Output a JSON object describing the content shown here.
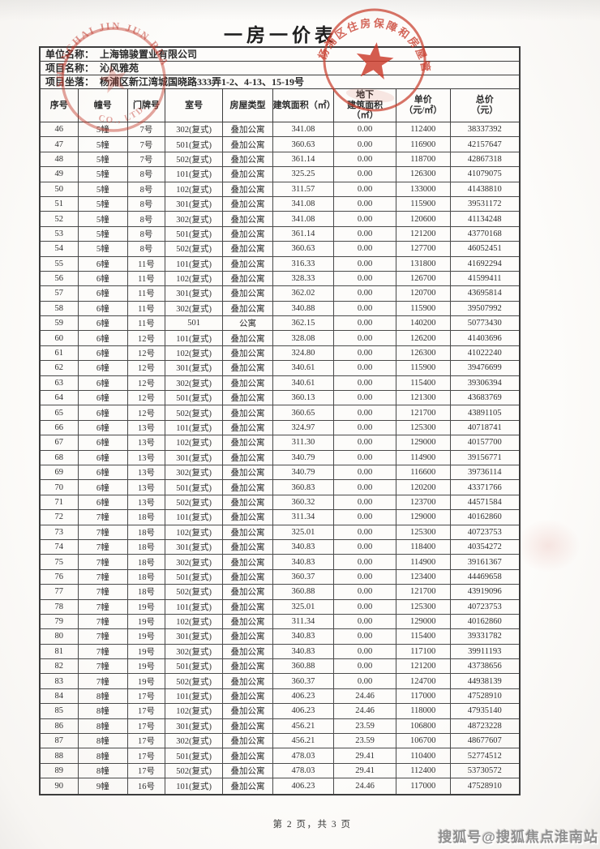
{
  "document": {
    "title": "一房一价表",
    "info": [
      {
        "label": "单位名称：",
        "value": "上海锦骏置业有限公司"
      },
      {
        "label": "项目名称：",
        "value": "沁风雅苑"
      },
      {
        "label": "项目坐落：",
        "value": "杨浦区新江湾城国晓路333弄1-2、4-13、15-19号"
      }
    ],
    "footer": {
      "page_text": "第 2 页，共 3 页"
    },
    "watermark": "搜狐号@搜狐焦点淮南站"
  },
  "table": {
    "columns": [
      "序号",
      "幢号",
      "门牌号",
      "室号",
      "房屋类型",
      "建筑面积（㎡）",
      "地下\n建筑面积\n（㎡）",
      "单价\n（元/㎡）",
      "总价\n（元）"
    ],
    "rows": [
      [
        "46",
        "5幢",
        "7号",
        "302(复式)",
        "叠加公寓",
        "341.08",
        "0.00",
        "112400",
        "38337392"
      ],
      [
        "47",
        "5幢",
        "7号",
        "501(复式)",
        "叠加公寓",
        "360.63",
        "0.00",
        "116900",
        "42157647"
      ],
      [
        "48",
        "5幢",
        "7号",
        "502(复式)",
        "叠加公寓",
        "361.14",
        "0.00",
        "118700",
        "42867318"
      ],
      [
        "49",
        "5幢",
        "8号",
        "101(复式)",
        "叠加公寓",
        "325.25",
        "0.00",
        "126300",
        "41079075"
      ],
      [
        "50",
        "5幢",
        "8号",
        "102(复式)",
        "叠加公寓",
        "311.57",
        "0.00",
        "133000",
        "41438810"
      ],
      [
        "51",
        "5幢",
        "8号",
        "301(复式)",
        "叠加公寓",
        "341.08",
        "0.00",
        "115900",
        "39531172"
      ],
      [
        "52",
        "5幢",
        "8号",
        "302(复式)",
        "叠加公寓",
        "341.08",
        "0.00",
        "120600",
        "41134248"
      ],
      [
        "53",
        "5幢",
        "8号",
        "501(复式)",
        "叠加公寓",
        "361.14",
        "0.00",
        "121200",
        "43770168"
      ],
      [
        "54",
        "5幢",
        "8号",
        "502(复式)",
        "叠加公寓",
        "360.63",
        "0.00",
        "127700",
        "46052451"
      ],
      [
        "55",
        "6幢",
        "11号",
        "101(复式)",
        "叠加公寓",
        "316.33",
        "0.00",
        "131800",
        "41692294"
      ],
      [
        "56",
        "6幢",
        "11号",
        "102(复式)",
        "叠加公寓",
        "328.33",
        "0.00",
        "126700",
        "41599411"
      ],
      [
        "57",
        "6幢",
        "11号",
        "301(复式)",
        "叠加公寓",
        "362.02",
        "0.00",
        "120700",
        "43695814"
      ],
      [
        "58",
        "6幢",
        "11号",
        "302(复式)",
        "叠加公寓",
        "340.88",
        "0.00",
        "115900",
        "39507992"
      ],
      [
        "59",
        "6幢",
        "11号",
        "501",
        "公寓",
        "362.15",
        "0.00",
        "140200",
        "50773430"
      ],
      [
        "60",
        "6幢",
        "12号",
        "101(复式)",
        "叠加公寓",
        "328.08",
        "0.00",
        "126200",
        "41403696"
      ],
      [
        "61",
        "6幢",
        "12号",
        "102(复式)",
        "叠加公寓",
        "324.80",
        "0.00",
        "126300",
        "41022240"
      ],
      [
        "62",
        "6幢",
        "12号",
        "301(复式)",
        "叠加公寓",
        "340.61",
        "0.00",
        "115900",
        "39476699"
      ],
      [
        "63",
        "6幢",
        "12号",
        "302(复式)",
        "叠加公寓",
        "340.61",
        "0.00",
        "115400",
        "39306394"
      ],
      [
        "64",
        "6幢",
        "12号",
        "501(复式)",
        "叠加公寓",
        "360.13",
        "0.00",
        "121300",
        "43683769"
      ],
      [
        "65",
        "6幢",
        "12号",
        "502(复式)",
        "叠加公寓",
        "360.65",
        "0.00",
        "121700",
        "43891105"
      ],
      [
        "66",
        "6幢",
        "13号",
        "101(复式)",
        "叠加公寓",
        "324.97",
        "0.00",
        "125300",
        "40718741"
      ],
      [
        "67",
        "6幢",
        "13号",
        "102(复式)",
        "叠加公寓",
        "311.30",
        "0.00",
        "129000",
        "40157700"
      ],
      [
        "68",
        "6幢",
        "13号",
        "301(复式)",
        "叠加公寓",
        "340.79",
        "0.00",
        "114900",
        "39156771"
      ],
      [
        "69",
        "6幢",
        "13号",
        "302(复式)",
        "叠加公寓",
        "340.79",
        "0.00",
        "116600",
        "39736114"
      ],
      [
        "70",
        "6幢",
        "13号",
        "501(复式)",
        "叠加公寓",
        "360.83",
        "0.00",
        "120200",
        "43371766"
      ],
      [
        "71",
        "6幢",
        "13号",
        "502(复式)",
        "叠加公寓",
        "360.32",
        "0.00",
        "123700",
        "44571584"
      ],
      [
        "72",
        "7幢",
        "18号",
        "101(复式)",
        "叠加公寓",
        "311.34",
        "0.00",
        "129000",
        "40162860"
      ],
      [
        "73",
        "7幢",
        "18号",
        "102(复式)",
        "叠加公寓",
        "325.01",
        "0.00",
        "125300",
        "40723753"
      ],
      [
        "74",
        "7幢",
        "18号",
        "301(复式)",
        "叠加公寓",
        "340.83",
        "0.00",
        "118400",
        "40354272"
      ],
      [
        "75",
        "7幢",
        "18号",
        "302(复式)",
        "叠加公寓",
        "340.83",
        "0.00",
        "114900",
        "39161367"
      ],
      [
        "76",
        "7幢",
        "18号",
        "501(复式)",
        "叠加公寓",
        "360.37",
        "0.00",
        "123400",
        "44469658"
      ],
      [
        "77",
        "7幢",
        "18号",
        "502(复式)",
        "叠加公寓",
        "360.88",
        "0.00",
        "121700",
        "43919096"
      ],
      [
        "78",
        "7幢",
        "19号",
        "101(复式)",
        "叠加公寓",
        "325.01",
        "0.00",
        "125300",
        "40723753"
      ],
      [
        "79",
        "7幢",
        "19号",
        "102(复式)",
        "叠加公寓",
        "311.34",
        "0.00",
        "129000",
        "40162860"
      ],
      [
        "80",
        "7幢",
        "19号",
        "301(复式)",
        "叠加公寓",
        "340.83",
        "0.00",
        "115400",
        "39331782"
      ],
      [
        "81",
        "7幢",
        "19号",
        "302(复式)",
        "叠加公寓",
        "340.83",
        "0.00",
        "117100",
        "39911193"
      ],
      [
        "82",
        "7幢",
        "19号",
        "501(复式)",
        "叠加公寓",
        "360.88",
        "0.00",
        "121200",
        "43738656"
      ],
      [
        "83",
        "7幢",
        "19号",
        "502(复式)",
        "叠加公寓",
        "360.37",
        "0.00",
        "124700",
        "44938139"
      ],
      [
        "84",
        "8幢",
        "17号",
        "101(复式)",
        "叠加公寓",
        "406.23",
        "24.46",
        "117000",
        "47528910"
      ],
      [
        "85",
        "8幢",
        "17号",
        "102(复式)",
        "叠加公寓",
        "406.23",
        "24.46",
        "118000",
        "47935140"
      ],
      [
        "86",
        "8幢",
        "17号",
        "301(复式)",
        "叠加公寓",
        "456.21",
        "23.59",
        "106800",
        "48723228"
      ],
      [
        "87",
        "8幢",
        "17号",
        "302(复式)",
        "叠加公寓",
        "456.21",
        "23.59",
        "106700",
        "48677607"
      ],
      [
        "88",
        "8幢",
        "17号",
        "501(复式)",
        "叠加公寓",
        "478.03",
        "29.41",
        "110400",
        "52774512"
      ],
      [
        "89",
        "8幢",
        "17号",
        "502(复式)",
        "叠加公寓",
        "478.03",
        "29.41",
        "112400",
        "53730572"
      ],
      [
        "90",
        "9幢",
        "16号",
        "101(复式)",
        "叠加公寓",
        "406.23",
        "24.46",
        "117000",
        "47528910"
      ]
    ]
  },
  "stamps": {
    "company_seal": {
      "arc_text_top": "SHANGHAI JIN JUN REALTY",
      "arc_text_bottom": "CO., LTD."
    },
    "authority_seal": {
      "arc_text": "杨浦区住房保障和房屋管理局"
    }
  },
  "colors": {
    "stamp_red": "#c23d2d",
    "border": "#3c3c3c",
    "text": "#2b2b2b",
    "watermark_gray": "#8f8f8f",
    "paper": "#fdfcfa"
  }
}
